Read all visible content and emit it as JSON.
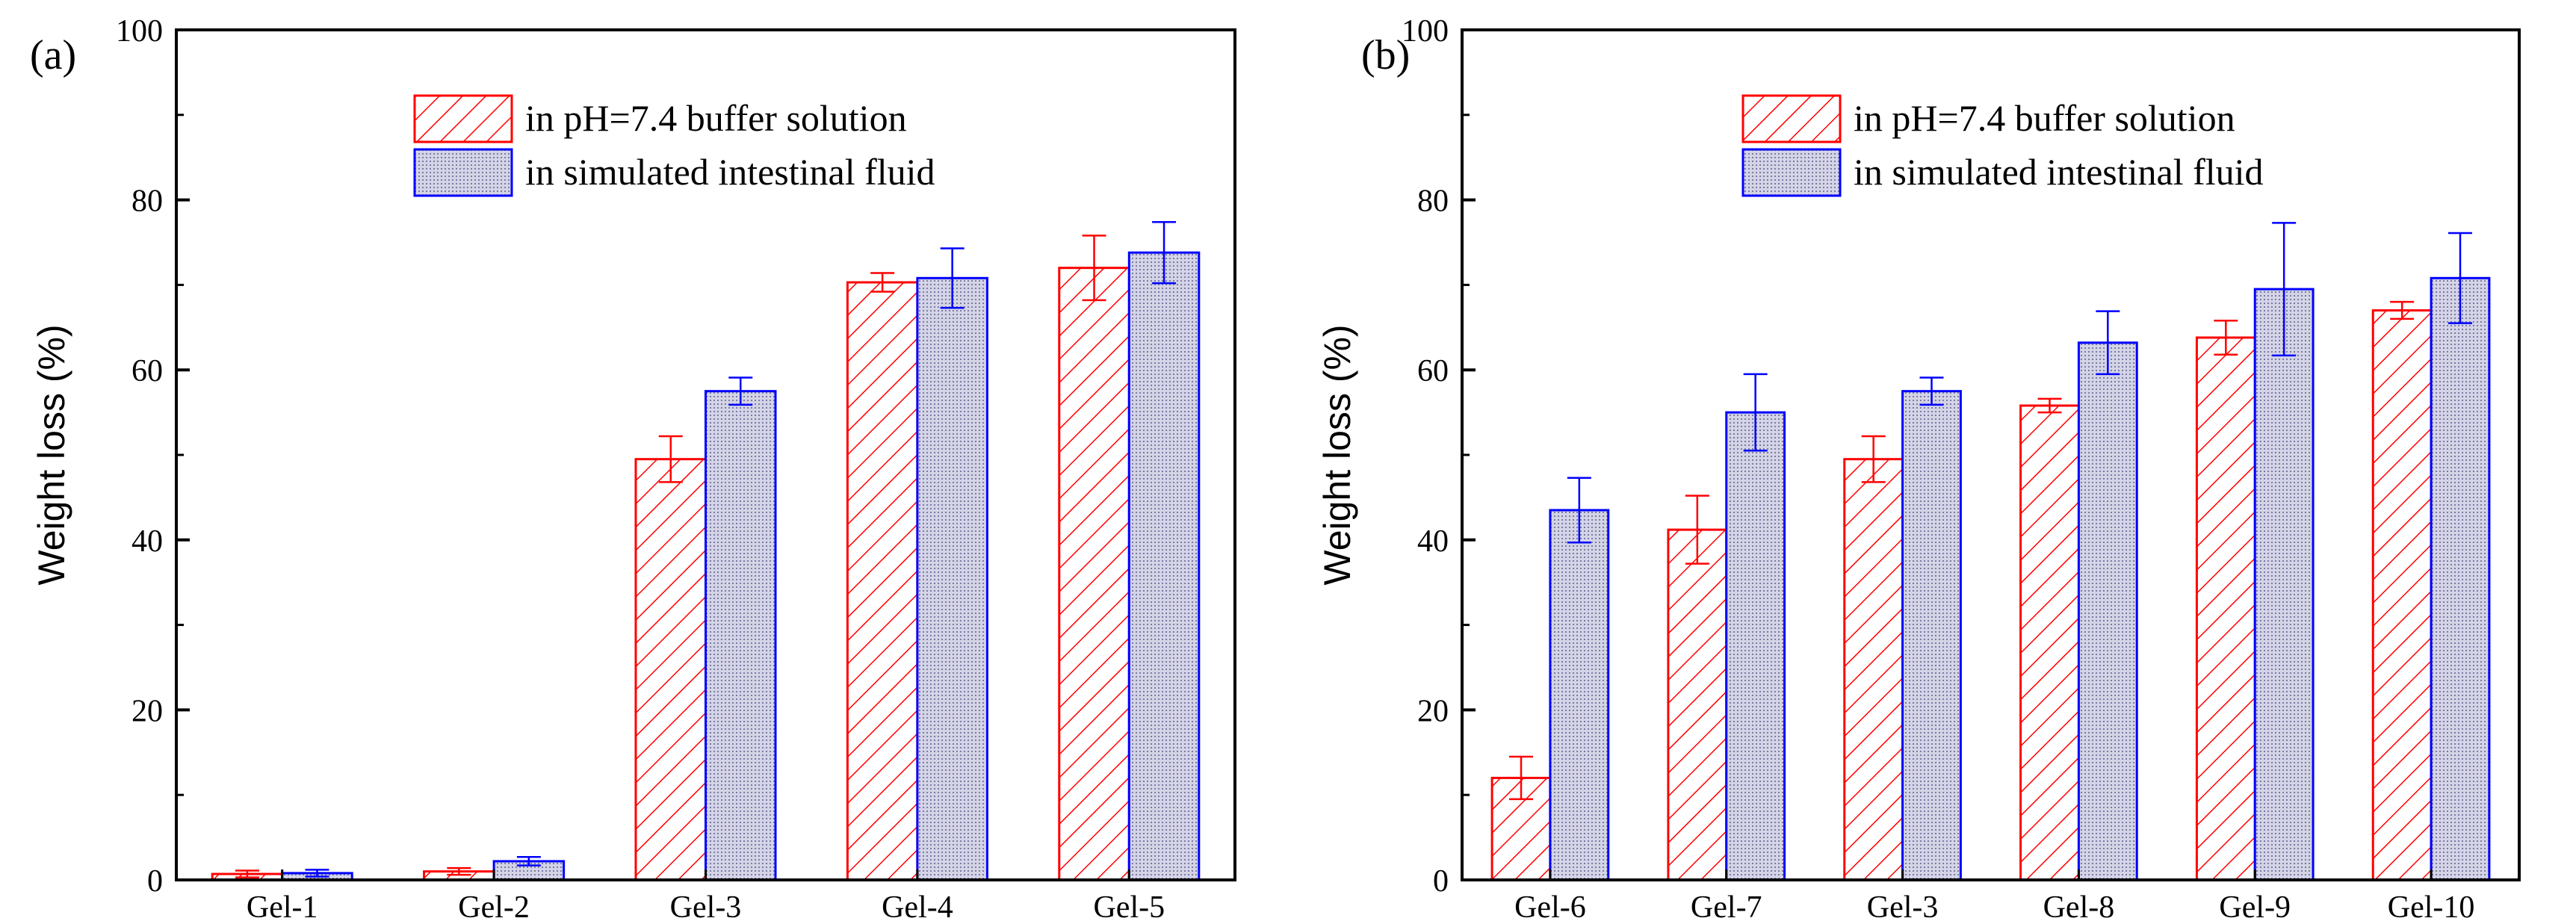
{
  "colors": {
    "buffer": "#ff0000",
    "intestinal": "#0000ff",
    "intestinal_fill": "#c9c9dd",
    "axis": "#000000"
  },
  "chart_data": [
    {
      "panel_label": "(a)",
      "type": "bar",
      "ylabel": "Weight loss (%)",
      "xlabel": "",
      "ylim": [
        0,
        100
      ],
      "yticks": [
        0,
        20,
        40,
        60,
        80,
        100
      ],
      "categories": [
        "Gel-1",
        "Gel-2",
        "Gel-3",
        "Gel-4",
        "Gel-5"
      ],
      "legend_position": "top-center",
      "series": [
        {
          "name": "in pH=7.4 buffer solution",
          "pattern": "hatch",
          "values": [
            0.7,
            1.0,
            49.5,
            70.3,
            72.0
          ],
          "errors": [
            0.4,
            0.4,
            2.7,
            1.1,
            3.8
          ]
        },
        {
          "name": "in simulated intestinal fluid",
          "pattern": "dots",
          "values": [
            0.8,
            2.2,
            57.5,
            70.8,
            73.8
          ],
          "errors": [
            0.4,
            0.5,
            1.6,
            3.5,
            3.6
          ]
        }
      ]
    },
    {
      "panel_label": "(b)",
      "type": "bar",
      "ylabel": "Weight loss (%)",
      "xlabel": "",
      "ylim": [
        0,
        100
      ],
      "yticks": [
        0,
        20,
        40,
        60,
        80,
        100
      ],
      "categories": [
        "Gel-6",
        "Gel-7",
        "Gel-3",
        "Gel-8",
        "Gel-9",
        "Gel-10"
      ],
      "legend_position": "top-center",
      "series": [
        {
          "name": "in pH=7.4 buffer solution",
          "pattern": "hatch",
          "values": [
            12.0,
            41.2,
            49.5,
            55.8,
            63.8,
            67.0
          ],
          "errors": [
            2.5,
            4.0,
            2.7,
            0.8,
            2.0,
            1.0
          ]
        },
        {
          "name": "in simulated intestinal fluid",
          "pattern": "dots",
          "values": [
            43.5,
            55.0,
            57.5,
            63.2,
            69.5,
            70.8
          ],
          "errors": [
            3.8,
            4.5,
            1.6,
            3.7,
            7.8,
            5.3
          ]
        }
      ]
    }
  ]
}
